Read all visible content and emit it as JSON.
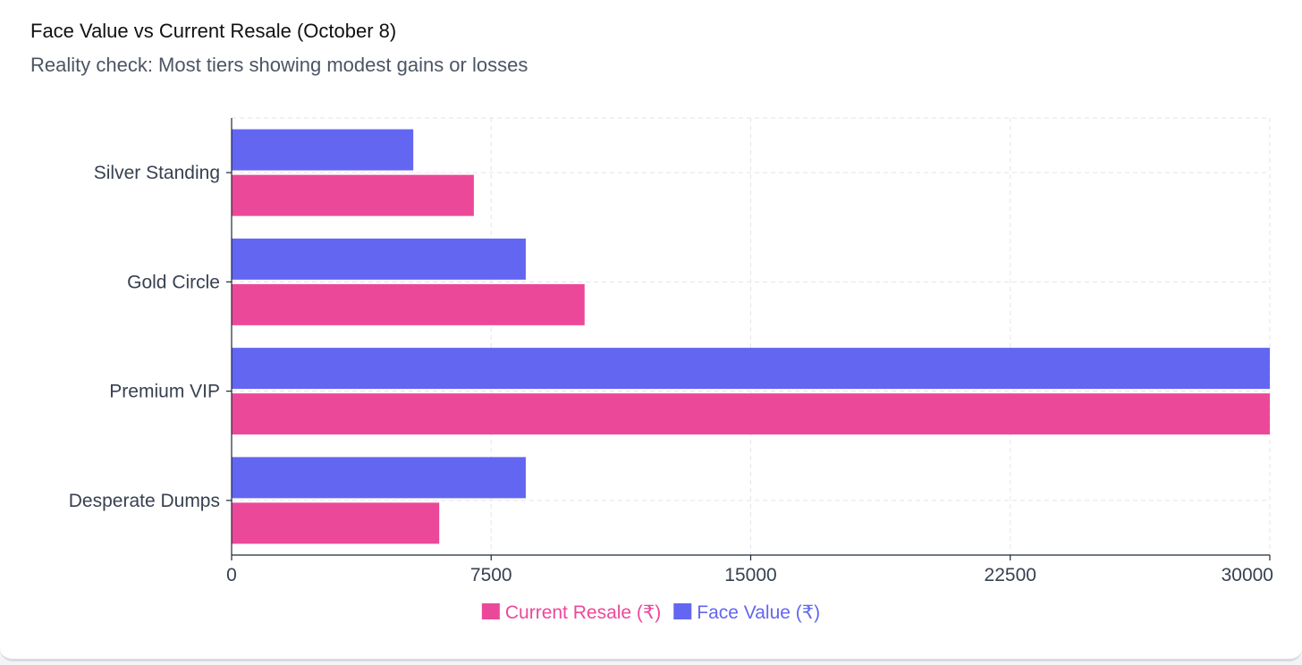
{
  "header": {
    "title": "Face Value vs Current Resale (October 8)",
    "subtitle": "Reality check: Most tiers showing modest gains or losses"
  },
  "chart_data": {
    "type": "bar",
    "orientation": "horizontal",
    "title": "Face Value vs Current Resale (October 8)",
    "subtitle": "Reality check: Most tiers showing modest gains or losses",
    "categories": [
      "Silver Standing",
      "Gold Circle",
      "Premium VIP",
      "Desperate Dumps"
    ],
    "series": [
      {
        "name": "Face Value (₹)",
        "color": "#6366f1",
        "values": [
          5250,
          8500,
          30000,
          8500
        ]
      },
      {
        "name": "Current Resale (₹)",
        "color": "#ec4899",
        "values": [
          7000,
          10200,
          30000,
          6000
        ]
      }
    ],
    "xlim": [
      0,
      30000
    ],
    "xticks": [
      "0",
      "7500",
      "15000",
      "22500",
      "30000"
    ],
    "xtick_values": [
      0,
      7500,
      15000,
      22500,
      30000
    ],
    "grid": true,
    "legend": {
      "position": "bottom-center",
      "items": [
        {
          "label": "Current Resale (₹)",
          "color": "#ec4899"
        },
        {
          "label": "Face Value (₹)",
          "color": "#6366f1"
        }
      ]
    }
  }
}
